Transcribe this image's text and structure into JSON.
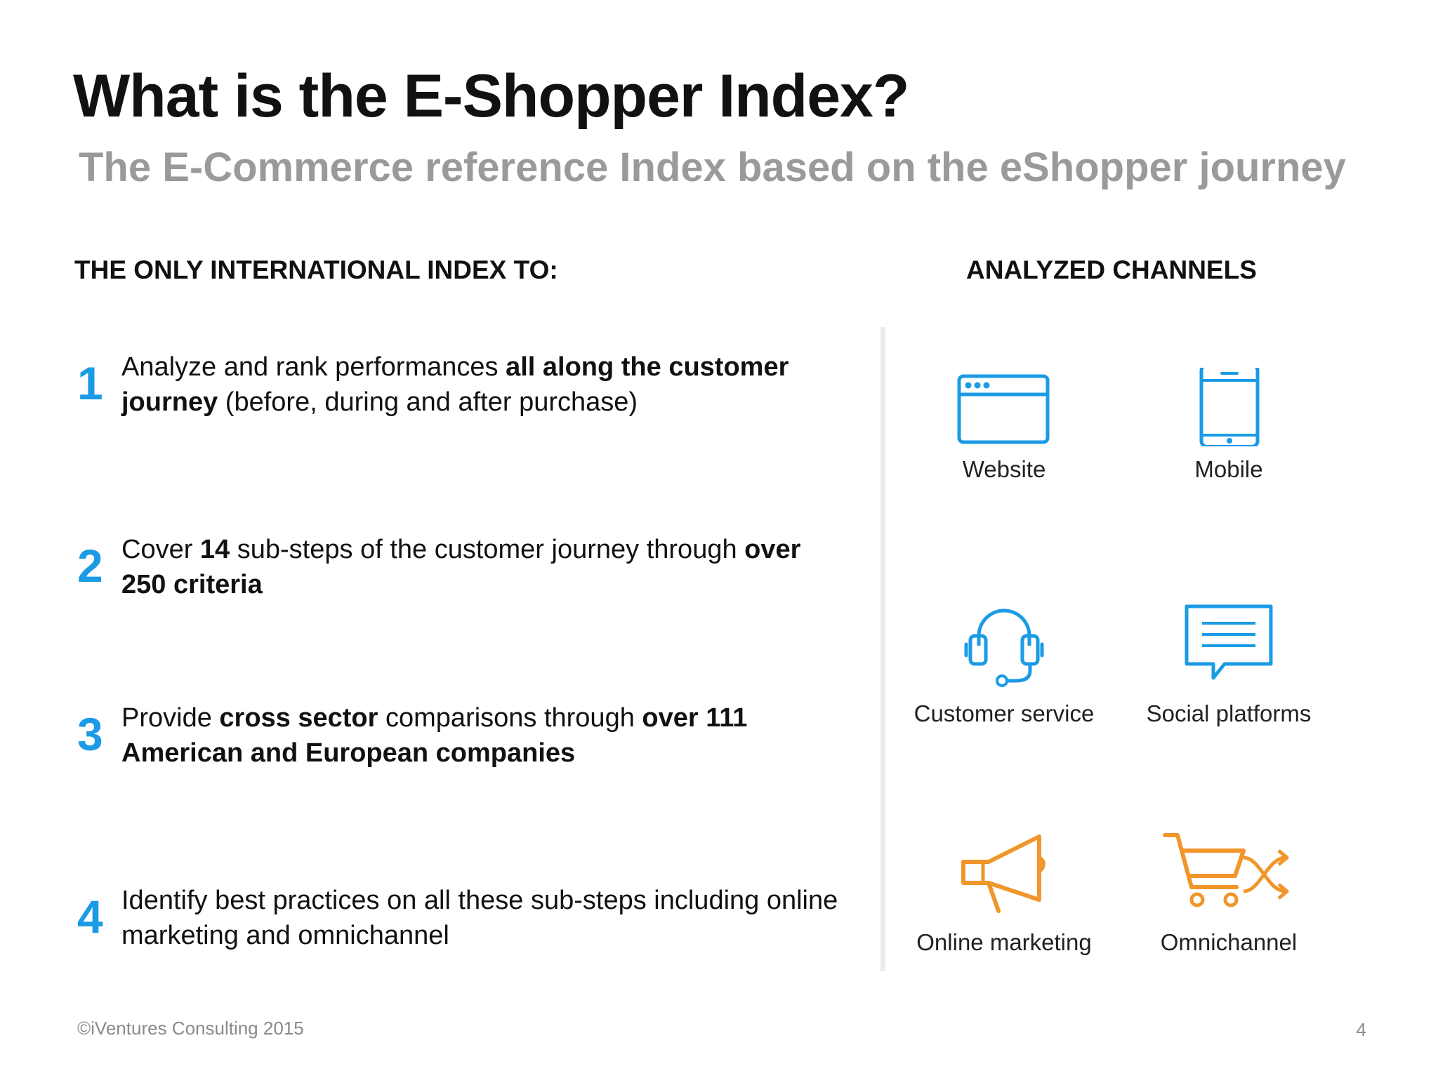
{
  "title": "What is the E-Shopper Index?",
  "subtitle": "The E-Commerce reference Index based on the eShopper journey",
  "left_section": {
    "heading": "THE ONLY INTERNATIONAL INDEX TO:",
    "items": [
      {
        "number": "1",
        "parts": [
          {
            "text": "Analyze and rank performances ",
            "bold": false
          },
          {
            "text": "all along the customer journey",
            "bold": true
          },
          {
            "text": " (before, during and after purchase)",
            "bold": false
          }
        ]
      },
      {
        "number": "2",
        "parts": [
          {
            "text": "Cover ",
            "bold": false
          },
          {
            "text": "14",
            "bold": true
          },
          {
            "text": " sub-steps of the customer journey through ",
            "bold": false
          },
          {
            "text": "over 250 criteria",
            "bold": true
          }
        ]
      },
      {
        "number": "3",
        "parts": [
          {
            "text": "Provide ",
            "bold": false
          },
          {
            "text": "cross sector",
            "bold": true
          },
          {
            "text": " comparisons through ",
            "bold": false
          },
          {
            "text": "over 111 American and European companies",
            "bold": true
          }
        ]
      },
      {
        "number": "4",
        "parts": [
          {
            "text": "Identify best practices on all these sub-steps including online marketing and omnichannel",
            "bold": false
          }
        ]
      }
    ]
  },
  "right_section": {
    "heading": "ANALYZED CHANNELS",
    "channels": [
      {
        "label": "Website",
        "icon": "browser-window-icon"
      },
      {
        "label": "Mobile",
        "icon": "smartphone-icon"
      },
      {
        "label": "Customer service",
        "icon": "headset-icon"
      },
      {
        "label": "Social platforms",
        "icon": "chat-bubble-icon"
      },
      {
        "label": "Online marketing",
        "icon": "megaphone-icon"
      },
      {
        "label": "Omnichannel",
        "icon": "shopping-cart-shuffle-icon"
      }
    ]
  },
  "colors": {
    "accent_blue": "#1b9be6",
    "accent_orange": "#f0962a",
    "subtitle_gray": "#9a9a9a"
  },
  "footer": {
    "copyright": "©iVentures Consulting 2015",
    "page_number": "4"
  }
}
